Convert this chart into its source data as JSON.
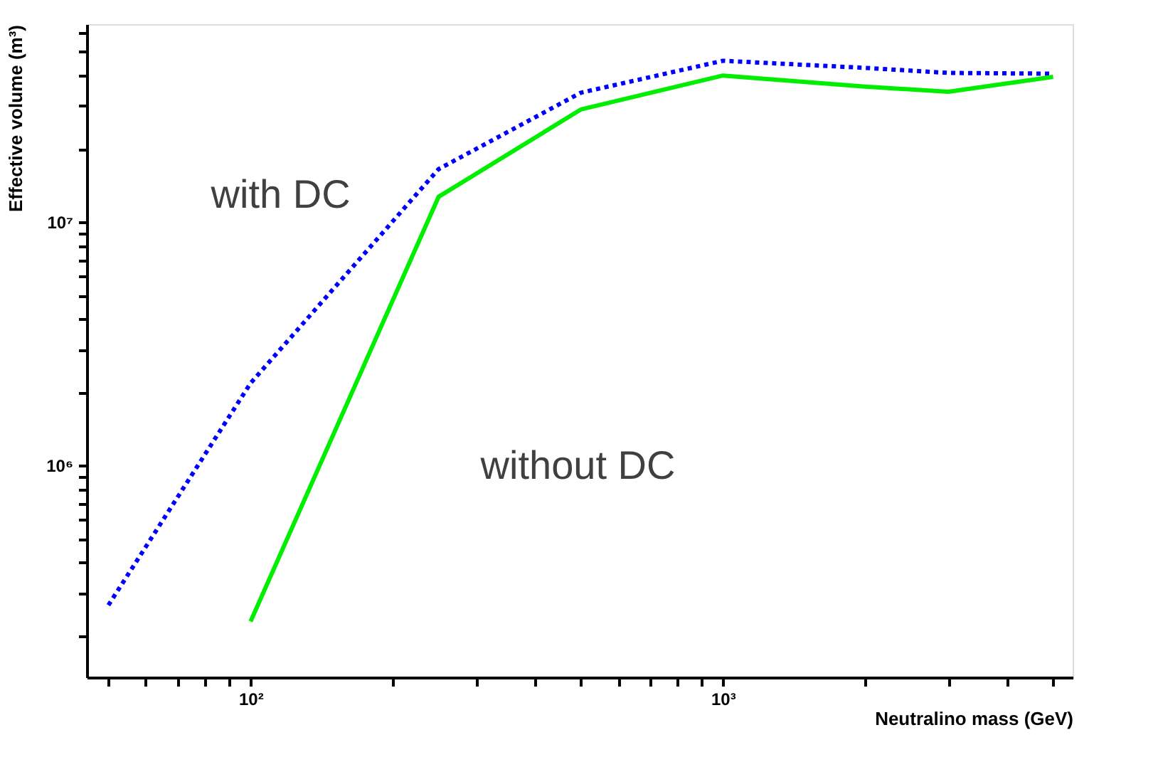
{
  "chart_data": {
    "type": "line",
    "xlabel": "Neutralino mass (GeV)",
    "ylabel": "Effective volume (m³)",
    "log": "xy",
    "x": [
      50,
      100,
      250,
      500,
      1000,
      2000,
      3000,
      5000
    ],
    "series": [
      {
        "color": "#0000ff",
        "line_style": "dotted",
        "values": [
          267000,
          2180000,
          16500000,
          34000000,
          46000000,
          43000000,
          41000000,
          40700000
        ]
      },
      {
        "color": "#00ee00",
        "line_style": "solid",
        "values": [
          null,
          229000,
          12700000,
          29000000,
          40000000,
          36000000,
          34300000,
          39500000
        ]
      }
    ],
    "xlim": [
      45,
      5500
    ],
    "ylim": [
      135000,
      65000000
    ],
    "xticks": [
      {
        "value": 50,
        "label": null
      },
      {
        "value": 60,
        "label": null
      },
      {
        "value": 70,
        "label": null
      },
      {
        "value": 80,
        "label": null
      },
      {
        "value": 90,
        "label": null
      },
      {
        "value": 100,
        "label": "10²"
      },
      {
        "value": 200,
        "label": null
      },
      {
        "value": 300,
        "label": null
      },
      {
        "value": 400,
        "label": null
      },
      {
        "value": 500,
        "label": null
      },
      {
        "value": 600,
        "label": null
      },
      {
        "value": 700,
        "label": null
      },
      {
        "value": 800,
        "label": null
      },
      {
        "value": 900,
        "label": null
      },
      {
        "value": 1000,
        "label": "10³"
      },
      {
        "value": 2000,
        "label": null
      },
      {
        "value": 3000,
        "label": null
      },
      {
        "value": 4000,
        "label": null
      },
      {
        "value": 5000,
        "label": null
      }
    ],
    "yticks": [
      {
        "value": 200000,
        "label": null
      },
      {
        "value": 300000,
        "label": null
      },
      {
        "value": 400000,
        "label": null
      },
      {
        "value": 500000,
        "label": null
      },
      {
        "value": 600000,
        "label": null
      },
      {
        "value": 700000,
        "label": null
      },
      {
        "value": 800000,
        "label": null
      },
      {
        "value": 900000,
        "label": null
      },
      {
        "value": 1000000,
        "label": "10⁶"
      },
      {
        "value": 2000000,
        "label": null
      },
      {
        "value": 3000000,
        "label": null
      },
      {
        "value": 4000000,
        "label": null
      },
      {
        "value": 5000000,
        "label": null
      },
      {
        "value": 6000000,
        "label": null
      },
      {
        "value": 7000000,
        "label": null
      },
      {
        "value": 8000000,
        "label": null
      },
      {
        "value": 9000000,
        "label": null
      },
      {
        "value": 10000000,
        "label": "10⁷"
      },
      {
        "value": 20000000,
        "label": null
      },
      {
        "value": 30000000,
        "label": null
      },
      {
        "value": 40000000,
        "label": null
      },
      {
        "value": 50000000,
        "label": null
      },
      {
        "value": 60000000,
        "label": null
      }
    ],
    "annotations": [
      "with DC",
      "without DC"
    ],
    "grid": false,
    "marker": "none"
  }
}
